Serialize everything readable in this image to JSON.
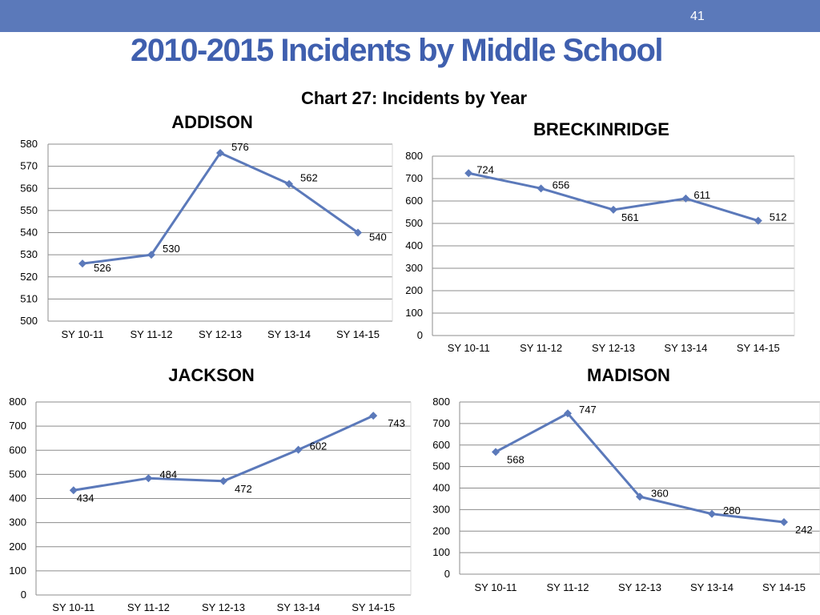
{
  "header": {
    "page_number": "41",
    "title": "2010-2015 Incidents by Middle School",
    "chart_heading": "Chart 27: Incidents by Year"
  },
  "colors": {
    "top_bar": "#5b79ba",
    "title": "#3f5fae",
    "series_line": "#5b79ba",
    "grid": "#8c8c8c"
  },
  "chart_data": [
    {
      "type": "line",
      "title": "ADDISON",
      "categories": [
        "SY 10-11",
        "SY 11-12",
        "SY 12-13",
        "SY 13-14",
        "SY 14-15"
      ],
      "values": [
        526,
        530,
        576,
        562,
        540
      ],
      "ylim": [
        500,
        580
      ],
      "yticks": [
        500,
        510,
        520,
        530,
        540,
        550,
        560,
        570,
        580
      ],
      "grid": true,
      "legend": "none"
    },
    {
      "type": "line",
      "title": "BRECKINRIDGE",
      "categories": [
        "SY 10-11",
        "SY 11-12",
        "SY 12-13",
        "SY 13-14",
        "SY 14-15"
      ],
      "values": [
        724,
        656,
        561,
        611,
        512
      ],
      "ylim": [
        0,
        800
      ],
      "yticks": [
        0,
        100,
        200,
        300,
        400,
        500,
        600,
        700,
        800
      ],
      "grid": true,
      "legend": "none"
    },
    {
      "type": "line",
      "title": "JACKSON",
      "categories": [
        "SY 10-11",
        "SY 11-12",
        "SY 12-13",
        "SY 13-14",
        "SY 14-15"
      ],
      "values": [
        434,
        484,
        472,
        602,
        743
      ],
      "ylim": [
        0,
        800
      ],
      "yticks": [
        0,
        100,
        200,
        300,
        400,
        500,
        600,
        700,
        800
      ],
      "grid": true,
      "legend": "none"
    },
    {
      "type": "line",
      "title": "MADISON",
      "categories": [
        "SY 10-11",
        "SY 11-12",
        "SY 12-13",
        "SY 13-14",
        "SY 14-15"
      ],
      "values": [
        568,
        747,
        360,
        280,
        242
      ],
      "ylim": [
        0,
        800
      ],
      "yticks": [
        0,
        100,
        200,
        300,
        400,
        500,
        600,
        700,
        800
      ],
      "grid": true,
      "legend": "none"
    }
  ]
}
